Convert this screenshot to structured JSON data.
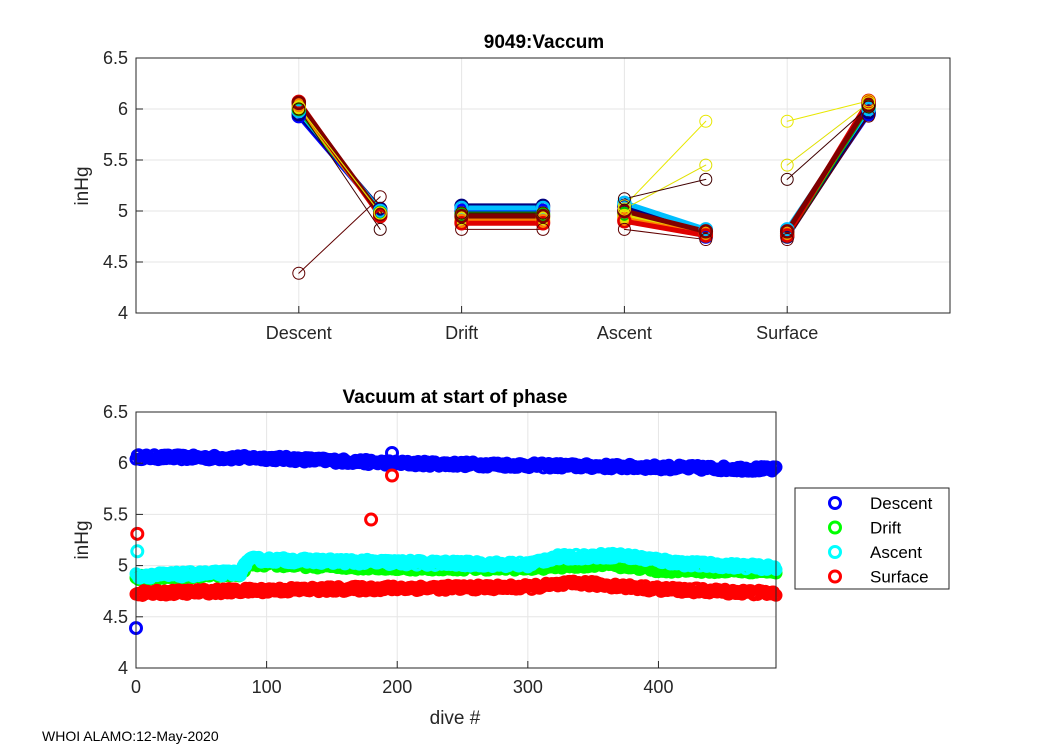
{
  "chart_data": [
    {
      "type": "line",
      "title": "9049:Vaccum",
      "ylabel": "inHg",
      "xlabel": "",
      "ylim": [
        4,
        6.5
      ],
      "yticks": [
        4,
        4.5,
        5,
        5.5,
        6,
        6.5
      ],
      "ytick_labels": [
        "4",
        "4.5",
        "5",
        "5.5",
        "6",
        "6.5"
      ],
      "xlim": [
        0,
        8
      ],
      "categories": [
        "Descent",
        "Drift",
        "Ascent",
        "Surface"
      ],
      "category_x": [
        2,
        4,
        6,
        8
      ],
      "grid": true,
      "typical_series": [
        {
          "name": "blue",
          "color": "#0000ff",
          "points": [
            [
              2,
              5.93
            ],
            [
              3,
              5.0
            ],
            [
              4,
              5.0
            ],
            [
              5,
              5.0
            ],
            [
              6,
              5.0
            ],
            [
              7,
              4.75
            ],
            [
              8,
              4.78
            ],
            [
              9,
              5.95
            ]
          ]
        },
        {
          "name": "navy",
          "color": "#000080",
          "points": [
            [
              2,
              5.95
            ],
            [
              3,
              5.02
            ],
            [
              4,
              5.05
            ],
            [
              5,
              5.05
            ],
            [
              6,
              5.05
            ],
            [
              7,
              4.8
            ],
            [
              8,
              4.75
            ],
            [
              9,
              5.97
            ]
          ]
        },
        {
          "name": "cyan",
          "color": "#00bfff",
          "points": [
            [
              2,
              5.98
            ],
            [
              3,
              5.0
            ],
            [
              4,
              5.03
            ],
            [
              5,
              5.03
            ],
            [
              6,
              5.08
            ],
            [
              7,
              4.82
            ],
            [
              8,
              4.82
            ],
            [
              9,
              6.0
            ]
          ]
        },
        {
          "name": "green",
          "color": "#00c000",
          "points": [
            [
              2,
              6.0
            ],
            [
              3,
              4.98
            ],
            [
              4,
              4.97
            ],
            [
              5,
              4.97
            ],
            [
              6,
              4.97
            ],
            [
              7,
              4.76
            ],
            [
              8,
              4.76
            ],
            [
              9,
              6.03
            ]
          ]
        },
        {
          "name": "yellow",
          "color": "#e0e000",
          "points": [
            [
              2,
              6.02
            ],
            [
              3,
              4.97
            ],
            [
              4,
              4.93
            ],
            [
              5,
              4.93
            ],
            [
              6,
              4.95
            ],
            [
              7,
              4.78
            ],
            [
              8,
              4.78
            ],
            [
              9,
              6.05
            ]
          ]
        },
        {
          "name": "orange",
          "color": "#ff8000",
          "points": [
            [
              2,
              6.04
            ],
            [
              3,
              4.96
            ],
            [
              4,
              4.9
            ],
            [
              5,
              4.9
            ],
            [
              6,
              4.92
            ],
            [
              7,
              4.77
            ],
            [
              8,
              4.77
            ],
            [
              9,
              6.06
            ]
          ]
        },
        {
          "name": "red",
          "color": "#e00000",
          "points": [
            [
              2,
              6.07
            ],
            [
              3,
              4.95
            ],
            [
              4,
              4.88
            ],
            [
              5,
              4.88
            ],
            [
              6,
              4.9
            ],
            [
              7,
              4.76
            ],
            [
              8,
              4.76
            ],
            [
              9,
              6.08
            ]
          ]
        },
        {
          "name": "darkred",
          "color": "#800000",
          "points": [
            [
              2,
              6.06
            ],
            [
              3,
              4.97
            ],
            [
              4,
              4.95
            ],
            [
              5,
              4.95
            ],
            [
              6,
              5.0
            ],
            [
              7,
              4.8
            ],
            [
              8,
              4.8
            ],
            [
              9,
              6.04
            ]
          ]
        }
      ],
      "outlier_series": [
        {
          "name": "outlier-1",
          "color": "#600000",
          "points": [
            [
              2,
              4.39
            ],
            [
              3,
              5.14
            ],
            [
              4,
              4.82
            ],
            [
              5,
              4.82
            ],
            [
              6,
              4.82
            ],
            [
              7,
              4.72
            ],
            [
              8,
              4.72
            ],
            [
              9,
              5.93
            ]
          ]
        },
        {
          "name": "outlier-2",
          "color": "#e8e800",
          "points": [
            [
              2,
              6.02
            ],
            [
              3,
              4.98
            ],
            [
              4,
              4.98
            ],
            [
              5,
              4.98
            ],
            [
              6,
              5.05
            ],
            [
              7,
              5.88
            ],
            [
              8,
              5.88
            ],
            [
              9,
              6.08
            ]
          ]
        },
        {
          "name": "outlier-3",
          "color": "#e0e000",
          "points": [
            [
              2,
              6.02
            ],
            [
              3,
              4.98
            ],
            [
              4,
              4.98
            ],
            [
              5,
              4.98
            ],
            [
              6,
              5.02
            ],
            [
              7,
              5.45
            ],
            [
              8,
              5.45
            ],
            [
              9,
              6.06
            ]
          ]
        },
        {
          "name": "outlier-4",
          "color": "#400000",
          "points": [
            [
              2,
              6.0
            ],
            [
              3,
              4.82
            ],
            [
              4,
              4.98
            ],
            [
              5,
              4.98
            ],
            [
              6,
              5.12
            ],
            [
              7,
              5.31
            ],
            [
              8,
              5.31
            ],
            [
              9,
              6.02
            ]
          ]
        }
      ]
    },
    {
      "type": "scatter",
      "title": "Vacuum at start of phase",
      "xlabel": "dive #",
      "ylabel": "inHg",
      "xlim": [
        0,
        490
      ],
      "xticks": [
        0,
        100,
        200,
        300,
        400
      ],
      "xtick_labels": [
        "0",
        "100",
        "200",
        "300",
        "400"
      ],
      "ylim": [
        4,
        6.5
      ],
      "yticks": [
        4,
        4.5,
        5,
        5.5,
        6,
        6.5
      ],
      "ytick_labels": [
        "4",
        "4.5",
        "5",
        "5.5",
        "6",
        "6.5"
      ],
      "grid": true,
      "legend": {
        "position": "outside-right",
        "entries": [
          "Descent",
          "Drift",
          "Ascent",
          "Surface"
        ]
      },
      "series": [
        {
          "name": "Descent",
          "color": "#0000ff",
          "trend": [
            [
              0,
              6.06
            ],
            [
              100,
              6.05
            ],
            [
              200,
              6.0
            ],
            [
              300,
              5.98
            ],
            [
              400,
              5.96
            ],
            [
              490,
              5.94
            ]
          ],
          "outliers": [
            [
              0,
              4.39
            ],
            [
              196,
              6.1
            ]
          ]
        },
        {
          "name": "Drift",
          "color": "#00ff00",
          "trend": [
            [
              0,
              4.88
            ],
            [
              80,
              4.92
            ],
            [
              86,
              5.02
            ],
            [
              200,
              4.98
            ],
            [
              300,
              4.98
            ],
            [
              360,
              5.02
            ],
            [
              400,
              4.96
            ],
            [
              490,
              4.95
            ]
          ],
          "outliers": []
        },
        {
          "name": "Ascent",
          "color": "#00ffff",
          "trend": [
            [
              0,
              4.9
            ],
            [
              80,
              4.93
            ],
            [
              86,
              5.06
            ],
            [
              200,
              5.03
            ],
            [
              300,
              5.01
            ],
            [
              320,
              5.08
            ],
            [
              370,
              5.1
            ],
            [
              420,
              5.02
            ],
            [
              490,
              4.98
            ]
          ],
          "outliers": [
            [
              1,
              5.14
            ]
          ]
        },
        {
          "name": "Surface",
          "color": "#ff0000",
          "trend": [
            [
              0,
              4.73
            ],
            [
              100,
              4.76
            ],
            [
              200,
              4.78
            ],
            [
              300,
              4.79
            ],
            [
              340,
              4.83
            ],
            [
              400,
              4.77
            ],
            [
              490,
              4.73
            ]
          ],
          "outliers": [
            [
              1,
              5.31
            ],
            [
              180,
              5.45
            ],
            [
              196,
              5.88
            ]
          ]
        }
      ]
    }
  ],
  "footer": "WHOI ALAMO:12-May-2020"
}
